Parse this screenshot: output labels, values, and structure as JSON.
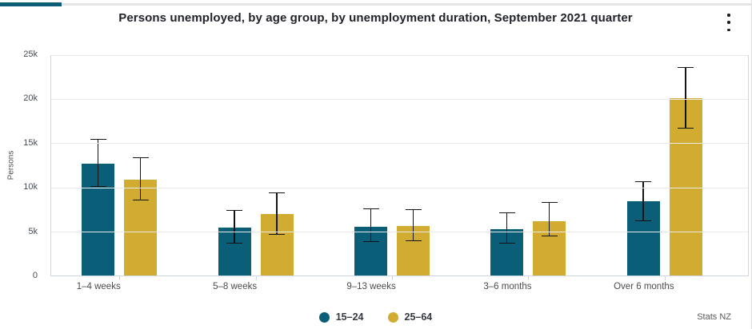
{
  "accent_color": "#0b5e78",
  "chart_data": {
    "type": "bar",
    "title": "Persons unemployed, by age group, by unemployment duration, September 2021 quarter",
    "categories": [
      "1–4 weeks",
      "5–8 weeks",
      "9–13 weeks",
      "3–6 months",
      "Over 6 months"
    ],
    "series": [
      {
        "name": "15–24",
        "color": "#0b5e78",
        "values": [
          12700,
          5400,
          5500,
          5300,
          8400
        ],
        "error_low": [
          10100,
          3600,
          3800,
          3600,
          6200
        ],
        "error_high": [
          15500,
          7400,
          7600,
          7200,
          10700
        ]
      },
      {
        "name": "25–64",
        "color": "#d1ac30",
        "values": [
          10900,
          7000,
          5600,
          6200,
          20100
        ],
        "error_low": [
          8500,
          4600,
          3900,
          4400,
          16700
        ],
        "error_high": [
          13400,
          9400,
          7500,
          8300,
          23600
        ]
      }
    ],
    "xlabel": "",
    "ylabel": "Persons",
    "ylim": [
      0,
      25000
    ],
    "yticks": [
      "0",
      "5k",
      "10k",
      "15k",
      "20k",
      "25k"
    ],
    "grid": true,
    "error_bars": true,
    "legend_position": "bottom"
  },
  "footer": {
    "source": "Stats NZ"
  }
}
